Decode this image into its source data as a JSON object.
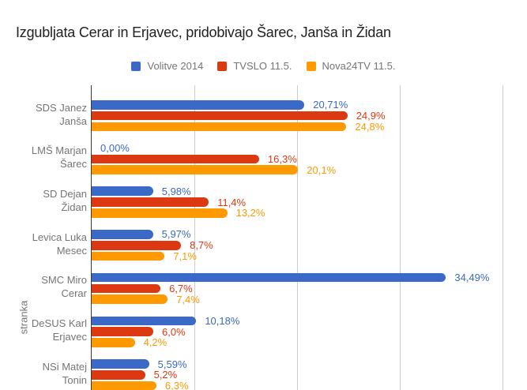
{
  "chart_data": {
    "type": "bar",
    "orientation": "horizontal",
    "title": "Izgubljata Cerar in Erjavec, pridobivajo Šarec, Janša in Židan",
    "xlabel": "",
    "ylabel": "stranka",
    "xlim": [
      0,
      42.5
    ],
    "x_gridlines_pct": [
      10,
      20,
      30,
      40
    ],
    "grid": true,
    "legend_position": "top",
    "value_suffix": "%",
    "categories": [
      "SDS Janez Janša",
      "LMŠ Marjan Šarec",
      "SD Dejan Židan",
      "Levica Luka Mesec",
      "SMC Miro Cerar",
      "DeSUS Karl Erjavec",
      "NSi Matej Tonin"
    ],
    "category_lines": [
      [
        "SDS Janez",
        "Janša"
      ],
      [
        "LMŠ Marjan",
        "Šarec"
      ],
      [
        "SD Dejan",
        "Židan"
      ],
      [
        "Levica Luka",
        "Mesec"
      ],
      [
        "SMC Miro",
        "Cerar"
      ],
      [
        "DeSUS Karl",
        "Erjavec"
      ],
      [
        "NSi Matej",
        "Tonin"
      ]
    ],
    "series": [
      {
        "name": "Volitve 2014",
        "color": "#3b69c7",
        "values": [
          20.71,
          0.0,
          5.98,
          5.97,
          34.49,
          10.18,
          5.59
        ],
        "value_labels": [
          "20,71%",
          "0,00%",
          "5,98%",
          "5,97%",
          "34,49%",
          "10,18%",
          "5,59%"
        ]
      },
      {
        "name": "TVSLO 11.5.",
        "color": "#dc3912",
        "values": [
          24.9,
          16.3,
          11.4,
          8.7,
          6.7,
          6.0,
          5.2
        ],
        "value_labels": [
          "24,9%",
          "16,3%",
          "11,4%",
          "8,7%",
          "6,7%",
          "6,0%",
          "5,2%"
        ]
      },
      {
        "name": "Nova24TV 11.5.",
        "color": "#ff9900",
        "values": [
          24.8,
          20.1,
          13.2,
          7.1,
          7.4,
          4.2,
          6.3
        ],
        "value_labels": [
          "24,8%",
          "20,1%",
          "13,2%",
          "7,1%",
          "7,4%",
          "4,2%",
          "6,3%"
        ]
      }
    ]
  }
}
